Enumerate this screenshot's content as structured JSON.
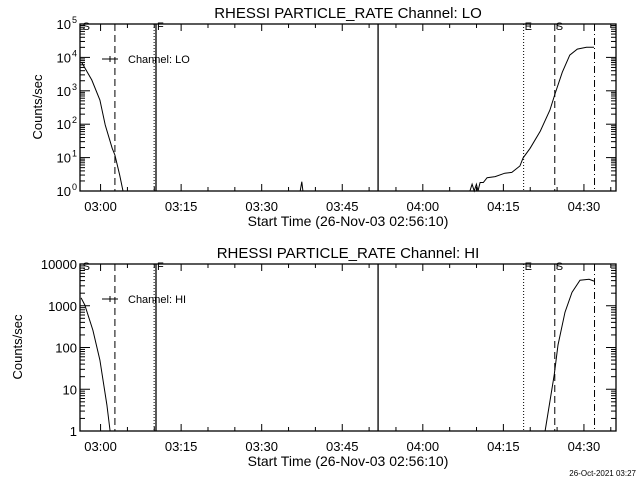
{
  "chart_data": [
    {
      "type": "line",
      "title": "RHESSI PARTICLE_RATE Channel: LO",
      "xlabel": "Start Time (26-Nov-03 02:56:10)",
      "ylabel": "Counts/sec",
      "x_units": "minutes after 02:56:10",
      "xlim": [
        0,
        99.8
      ],
      "ylim": [
        1,
        100000
      ],
      "yscale": "log",
      "xtick_labels": [
        {
          "t": 3.83,
          "label": "03:00"
        },
        {
          "t": 18.83,
          "label": "03:15"
        },
        {
          "t": 33.83,
          "label": "03:30"
        },
        {
          "t": 48.83,
          "label": "03:45"
        },
        {
          "t": 63.83,
          "label": "04:00"
        },
        {
          "t": 78.83,
          "label": "04:15"
        },
        {
          "t": 93.83,
          "label": "04:30"
        }
      ],
      "ytick_labels": [
        {
          "v": 1,
          "base": "10",
          "exp": "0"
        },
        {
          "v": 10,
          "base": "10",
          "exp": "1"
        },
        {
          "v": 100,
          "base": "10",
          "exp": "2"
        },
        {
          "v": 1000,
          "base": "10",
          "exp": "3"
        },
        {
          "v": 10000,
          "base": "10",
          "exp": "4"
        },
        {
          "v": 100000,
          "base": "10",
          "exp": "5"
        }
      ],
      "legend": {
        "label": "Channel: LO",
        "placement": "top-left"
      },
      "series": [
        {
          "name": "Channel: LO",
          "segments": [
            [
              [
                0.3,
                7200
              ],
              [
                2.2,
                2100
              ],
              [
                3.7,
                530
              ],
              [
                4.7,
                95
              ],
              [
                6.0,
                19
              ],
              [
                6.5,
                12
              ],
              [
                7.4,
                3
              ],
              [
                8.0,
                1
              ]
            ],
            [
              [
                41.0,
                1
              ],
              [
                41.3,
                1.9
              ],
              [
                41.5,
                1
              ]
            ],
            [
              [
                72.6,
                1
              ],
              [
                73.0,
                1.6
              ],
              [
                73.4,
                1
              ],
              [
                73.8,
                1.6
              ],
              [
                74.1,
                1
              ],
              [
                74.5,
                1.8
              ],
              [
                75.1,
                1.8
              ],
              [
                75.8,
                2.5
              ],
              [
                77.3,
                2.7
              ],
              [
                79.1,
                3.4
              ],
              [
                80.4,
                3.6
              ],
              [
                81.9,
                5.6
              ],
              [
                82.5,
                9.8
              ],
              [
                83.8,
                19
              ],
              [
                85.7,
                62
              ],
              [
                87.5,
                265
              ],
              [
                88.5,
                860
              ],
              [
                89.8,
                3600
              ],
              [
                91.2,
                11700
              ],
              [
                92.6,
                17700
              ],
              [
                94.3,
                20000
              ],
              [
                95.7,
                20000
              ]
            ]
          ]
        }
      ],
      "markers": [
        {
          "t": 0.3,
          "style": "none",
          "label": "S"
        },
        {
          "t": 6.5,
          "style": "dashed",
          "label": ""
        },
        {
          "t": 13.8,
          "style": "dotted",
          "label": ""
        },
        {
          "t": 14.15,
          "style": "solid",
          "label": "F"
        },
        {
          "t": 55.5,
          "style": "solid",
          "label": ""
        },
        {
          "t": 82.6,
          "style": "dotted",
          "label": "E"
        },
        {
          "t": 88.4,
          "style": "dashed",
          "label": "S"
        },
        {
          "t": 95.8,
          "style": "dashdot",
          "label": ""
        }
      ]
    },
    {
      "type": "line",
      "title": "RHESSI PARTICLE_RATE Channel: HI",
      "xlabel": "Start Time (26-Nov-03 02:56:10)",
      "ylabel": "Counts/sec",
      "x_units": "minutes after 02:56:10",
      "xlim": [
        0,
        99.8
      ],
      "ylim": [
        1,
        10000
      ],
      "yscale": "log",
      "xtick_labels": [
        {
          "t": 3.83,
          "label": "03:00"
        },
        {
          "t": 18.83,
          "label": "03:15"
        },
        {
          "t": 33.83,
          "label": "03:30"
        },
        {
          "t": 48.83,
          "label": "03:45"
        },
        {
          "t": 63.83,
          "label": "04:00"
        },
        {
          "t": 78.83,
          "label": "04:15"
        },
        {
          "t": 93.83,
          "label": "04:30"
        }
      ],
      "ytick_labels": [
        {
          "v": 1,
          "label": "1"
        },
        {
          "v": 10,
          "label": "10"
        },
        {
          "v": 100,
          "label": "100"
        },
        {
          "v": 1000,
          "label": "1000"
        },
        {
          "v": 10000,
          "label": "10000"
        }
      ],
      "legend": {
        "label": "Channel: HI",
        "placement": "top-left"
      },
      "series": [
        {
          "name": "Channel: HI",
          "segments": [
            [
              [
                0.2,
                1540
              ],
              [
                0.9,
                1040
              ],
              [
                2.4,
                260
              ],
              [
                3.7,
                50
              ],
              [
                5.0,
                4.2
              ],
              [
                5.6,
                1
              ]
            ],
            [
              [
                86.6,
                1
              ],
              [
                88.3,
                22
              ],
              [
                89.0,
                115
              ],
              [
                90.3,
                700
              ],
              [
                91.6,
                2100
              ],
              [
                93.1,
                4100
              ],
              [
                94.8,
                4300
              ],
              [
                95.7,
                3900
              ]
            ]
          ]
        }
      ],
      "markers": [
        {
          "t": 0.3,
          "style": "none",
          "label": "S"
        },
        {
          "t": 6.5,
          "style": "dashed",
          "label": ""
        },
        {
          "t": 13.8,
          "style": "dotted",
          "label": ""
        },
        {
          "t": 14.15,
          "style": "solid",
          "label": "F"
        },
        {
          "t": 55.5,
          "style": "solid",
          "label": ""
        },
        {
          "t": 82.6,
          "style": "dotted",
          "label": "E"
        },
        {
          "t": 88.4,
          "style": "dashed",
          "label": "S"
        },
        {
          "t": 95.8,
          "style": "dashdot",
          "label": ""
        }
      ]
    }
  ],
  "footer": {
    "timestamp": "26-Oct-2021 03:27"
  }
}
